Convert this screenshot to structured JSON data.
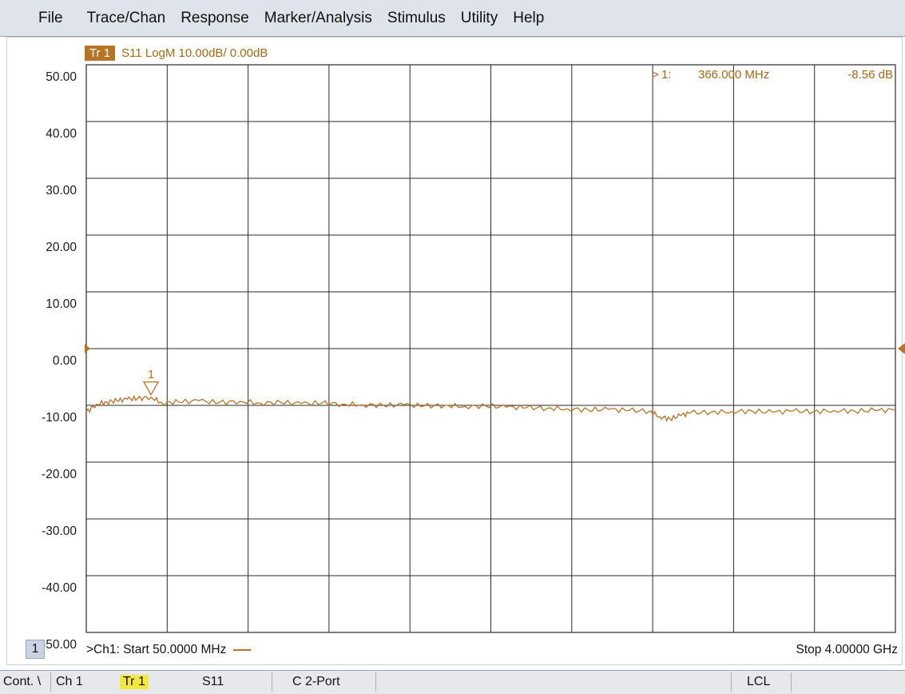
{
  "menu": [
    "File",
    "Trace/Chan",
    "Response",
    "Marker/Analysis",
    "Stimulus",
    "Utility",
    "Help"
  ],
  "trace": {
    "badge": "Tr 1",
    "description": "S11 LogM 10.00dB/ 0.00dB",
    "color": "#b87325"
  },
  "marker": {
    "arrow": ">",
    "id": "1:",
    "label": "1",
    "frequency": "366.000 MHz",
    "value": "-8.56 dB"
  },
  "footer": {
    "channel_button": "1",
    "start": ">Ch1: Start  50.0000 MHz",
    "stop": "Stop  4.00000 GHz"
  },
  "status_bar": {
    "mode": "Cont. \\",
    "channel": "Ch 1",
    "trace": "Tr 1",
    "parameter": "S11",
    "calibration": "C  2-Port",
    "remote": "LCL"
  },
  "chart_data": {
    "type": "line",
    "title": "",
    "xlabel": "",
    "ylabel": "",
    "x_unit": "MHz",
    "y_unit": "dB",
    "xlim": [
      50,
      4000
    ],
    "ylim": [
      -50,
      50
    ],
    "y_ticks": [
      "50.00",
      "40.00",
      "30.00",
      "20.00",
      "10.00",
      "0.00",
      "-10.00",
      "-20.00",
      "-30.00",
      "-40.00",
      "-50.00"
    ],
    "grid": true,
    "reference_level": 0,
    "series": [
      {
        "x": [
          50,
          100,
          150,
          200,
          250,
          300,
          366,
          420,
          500,
          600,
          700,
          800,
          900,
          1000,
          1100,
          1200,
          1300,
          1400,
          1500,
          1600,
          1700,
          1800,
          1900,
          2000,
          2100,
          2200,
          2300,
          2400,
          2500,
          2600,
          2700,
          2800,
          2850,
          2900,
          2950,
          3000,
          3100,
          3200,
          3300,
          3400,
          3500,
          3600,
          3700,
          3800,
          3900,
          4000
        ],
        "y": [
          -11.2,
          -9.8,
          -9.4,
          -9.2,
          -8.9,
          -8.8,
          -8.56,
          -9.6,
          -9.4,
          -9.2,
          -9.5,
          -9.3,
          -9.6,
          -9.5,
          -9.7,
          -9.6,
          -9.8,
          -9.9,
          -10.0,
          -9.9,
          -10.1,
          -10.0,
          -10.2,
          -10.1,
          -10.3,
          -10.4,
          -10.5,
          -10.6,
          -10.8,
          -10.7,
          -10.9,
          -11.0,
          -12.0,
          -12.4,
          -11.8,
          -11.3,
          -11.2,
          -11.1,
          -11.0,
          -11.2,
          -11.0,
          -11.1,
          -10.9,
          -11.0,
          -10.9,
          -10.8
        ]
      }
    ]
  }
}
